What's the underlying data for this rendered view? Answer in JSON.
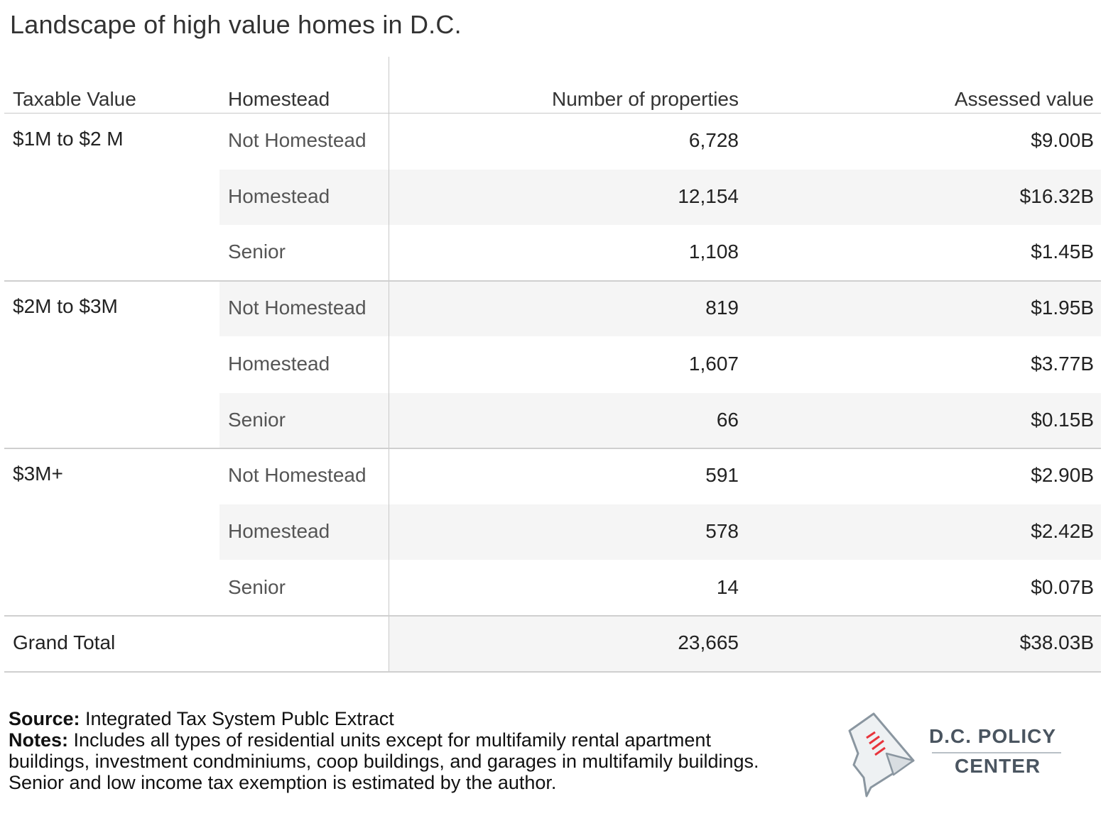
{
  "title": "Landscape of high value homes in D.C.",
  "headers": {
    "taxable_value": "Taxable Value",
    "homestead": "Homestead",
    "number_of_properties": "Number of properties",
    "assessed_value": "Assessed value"
  },
  "chart_data": {
    "type": "table",
    "title": "Landscape of high value homes in D.C.",
    "columns": [
      "Taxable Value",
      "Homestead",
      "Number of properties",
      "Assessed value"
    ],
    "groups": [
      {
        "label": "$1M to $2 M",
        "rows": [
          {
            "homestead": "Not Homestead",
            "count": "6,728",
            "value": "$9.00B"
          },
          {
            "homestead": "Homestead",
            "count": "12,154",
            "value": "$16.32B"
          },
          {
            "homestead": "Senior",
            "count": "1,108",
            "value": "$1.45B"
          }
        ]
      },
      {
        "label": "$2M to $3M",
        "rows": [
          {
            "homestead": "Not Homestead",
            "count": "819",
            "value": "$1.95B"
          },
          {
            "homestead": "Homestead",
            "count": "1,607",
            "value": "$3.77B"
          },
          {
            "homestead": "Senior",
            "count": "66",
            "value": "$0.15B"
          }
        ]
      },
      {
        "label": "$3M+",
        "rows": [
          {
            "homestead": "Not Homestead",
            "count": "591",
            "value": "$2.90B"
          },
          {
            "homestead": "Homestead",
            "count": "578",
            "value": "$2.42B"
          },
          {
            "homestead": "Senior",
            "count": "14",
            "value": "$0.07B"
          }
        ]
      }
    ],
    "grand_total": {
      "label": "Grand Total",
      "count": "23,665",
      "value": "$38.03B"
    }
  },
  "footer": {
    "source_label": "Source:",
    "source_text": "Integrated Tax System Publc Extract",
    "notes_label": "Notes:",
    "notes_text": "Includes all types of residential units except for multifamily rental apartment buildings, investment condminiums, coop buildings, and garages in multifamily buildings. Senior and low income tax exemption is estimated by the author."
  },
  "logo": {
    "line1": "D.C. POLICY",
    "line2": "CENTER",
    "icon": "dc-map-document-icon",
    "accent_color": "#e8343c",
    "text_color": "#4a5560"
  },
  "colors": {
    "band": "#f5f5f5",
    "rule": "#c8c8c8"
  }
}
